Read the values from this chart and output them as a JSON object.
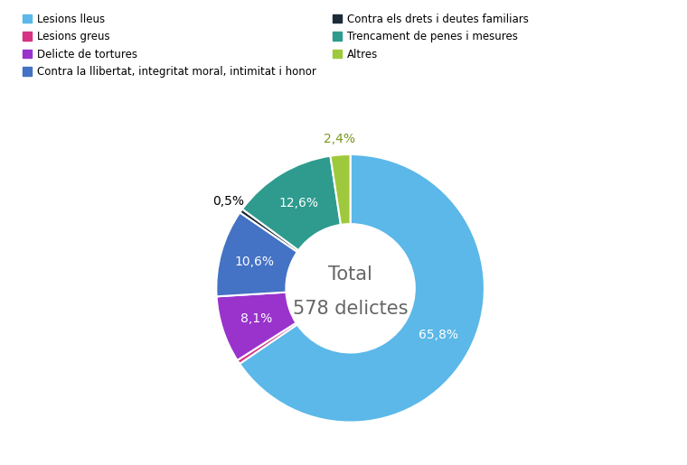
{
  "labels": [
    "Lesions lleus",
    "Lesions greus",
    "Delicte de tortures",
    "Contra la llibertat, integritat moral, intimitat i honor",
    "Contra els drets i deutes familiars",
    "Trencament de penes i mesures",
    "Altres"
  ],
  "values": [
    65.8,
    0.5,
    8.1,
    10.6,
    0.5,
    12.6,
    2.4
  ],
  "colors": [
    "#5bb8e8",
    "#d63384",
    "#9933cc",
    "#4472c4",
    "#1c2b3a",
    "#2e9b8e",
    "#9fc93c"
  ],
  "pct_labels": [
    "65,8%",
    "",
    "8,1%",
    "10,6%",
    "0,5%",
    "12,6%",
    "2,4%"
  ],
  "pct_colors": [
    "white",
    "white",
    "white",
    "white",
    "black",
    "white",
    "#7a9a1a"
  ],
  "center_text_line1": "Total",
  "center_text_line2": "578 delictes",
  "legend_labels_col1": [
    "Lesions lleus",
    "Delicte de tortures",
    "Contra els drets i deutes familiars",
    "Altres"
  ],
  "legend_colors_col1": [
    "#5bb8e8",
    "#9933cc",
    "#1c2b3a",
    "#9fc93c"
  ],
  "legend_labels_col2": [
    "Lesions greus",
    "Contra la llibertat, integritat moral, intimitat i honor",
    "Trencament de penes i mesures"
  ],
  "legend_colors_col2": [
    "#d63384",
    "#4472c4",
    "#2e9b8e"
  ],
  "background_color": "#ffffff",
  "figsize": [
    7.6,
    5.15
  ],
  "dpi": 100
}
